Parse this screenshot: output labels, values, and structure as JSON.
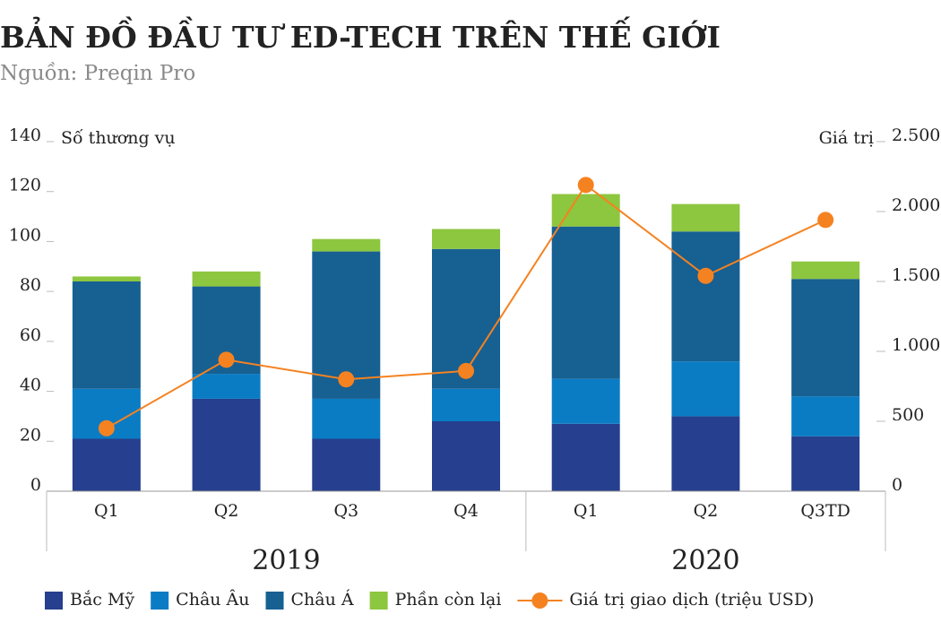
{
  "chart_data": {
    "type": "bar",
    "title": "BẢN ĐỒ ĐẦU TƯ ED-TECH TRÊN THẾ GIỚI",
    "subtitle": "Nguồn: Preqin Pro",
    "y_label": "Số thương vụ",
    "y2_label": "Giá trị",
    "stacked": true,
    "categories": [
      "Q1",
      "Q2",
      "Q3",
      "Q4",
      "Q1",
      "Q2",
      "Q3TD"
    ],
    "groups": [
      {
        "label": "2019",
        "size": 4
      },
      {
        "label": "2020",
        "size": 3
      }
    ],
    "series": [
      {
        "name": "Bắc Mỹ",
        "color": "#263f8e",
        "values": [
          21,
          37,
          21,
          28,
          27,
          30,
          22
        ]
      },
      {
        "name": "Châu Âu",
        "color": "#0a7cc4",
        "values": [
          20,
          10,
          16,
          13,
          18,
          22,
          16
        ]
      },
      {
        "name": "Châu Á",
        "color": "#176092",
        "values": [
          43,
          35,
          59,
          56,
          61,
          52,
          47
        ]
      },
      {
        "name": "Phần còn lại",
        "color": "#8dc63f",
        "values": [
          2,
          6,
          5,
          8,
          13,
          11,
          7
        ]
      },
      {
        "name": "Giá trị giao dịch (triệu USD)",
        "color": "#f58220",
        "type": "line",
        "axis": "y2",
        "values": [
          450,
          940,
          800,
          860,
          2190,
          1540,
          1940
        ]
      }
    ],
    "ylim": [
      0,
      140
    ],
    "yticks": [
      0,
      20,
      40,
      60,
      80,
      100,
      120,
      140
    ],
    "y2lim": [
      0,
      2500
    ],
    "y2ticks": [
      0,
      500,
      {
        "value": 1000,
        "label": "1.000"
      },
      {
        "value": 1500,
        "label": "1.500"
      },
      {
        "value": 2000,
        "label": "2.000"
      },
      {
        "value": 2500,
        "label": "2.500"
      }
    ],
    "grid": false
  }
}
